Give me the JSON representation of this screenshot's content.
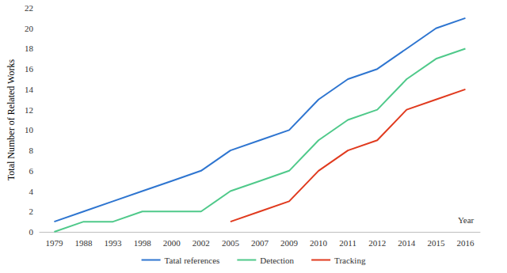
{
  "chart_data": {
    "type": "line",
    "x_label": "Year",
    "y_label": "Total Number of Related Works",
    "categories": [
      "1979",
      "1988",
      "1993",
      "1998",
      "2000",
      "2002",
      "2005",
      "2007",
      "2009",
      "2010",
      "2011",
      "2012",
      "2014",
      "2015",
      "2016"
    ],
    "series": [
      {
        "name": "Tatal references",
        "color": "#2e75d0",
        "values": [
          1,
          2,
          3,
          4,
          5,
          6,
          8,
          9,
          10,
          13,
          15,
          16,
          18,
          20,
          21
        ]
      },
      {
        "name": "Detection",
        "color": "#4fc98a",
        "values": [
          0,
          1,
          1,
          2,
          2,
          2,
          4,
          5,
          6,
          9,
          11,
          12,
          15,
          17,
          18
        ]
      },
      {
        "name": "Tracking",
        "color": "#e03a1e",
        "values": [
          null,
          null,
          null,
          null,
          null,
          null,
          1,
          2,
          3,
          6,
          8,
          9,
          12,
          13,
          14
        ]
      }
    ],
    "ylim": [
      0,
      22
    ],
    "yticks": [
      0,
      2,
      4,
      6,
      8,
      10,
      12,
      14,
      16,
      18,
      20,
      22
    ],
    "grid": false,
    "legend": "bottom"
  }
}
